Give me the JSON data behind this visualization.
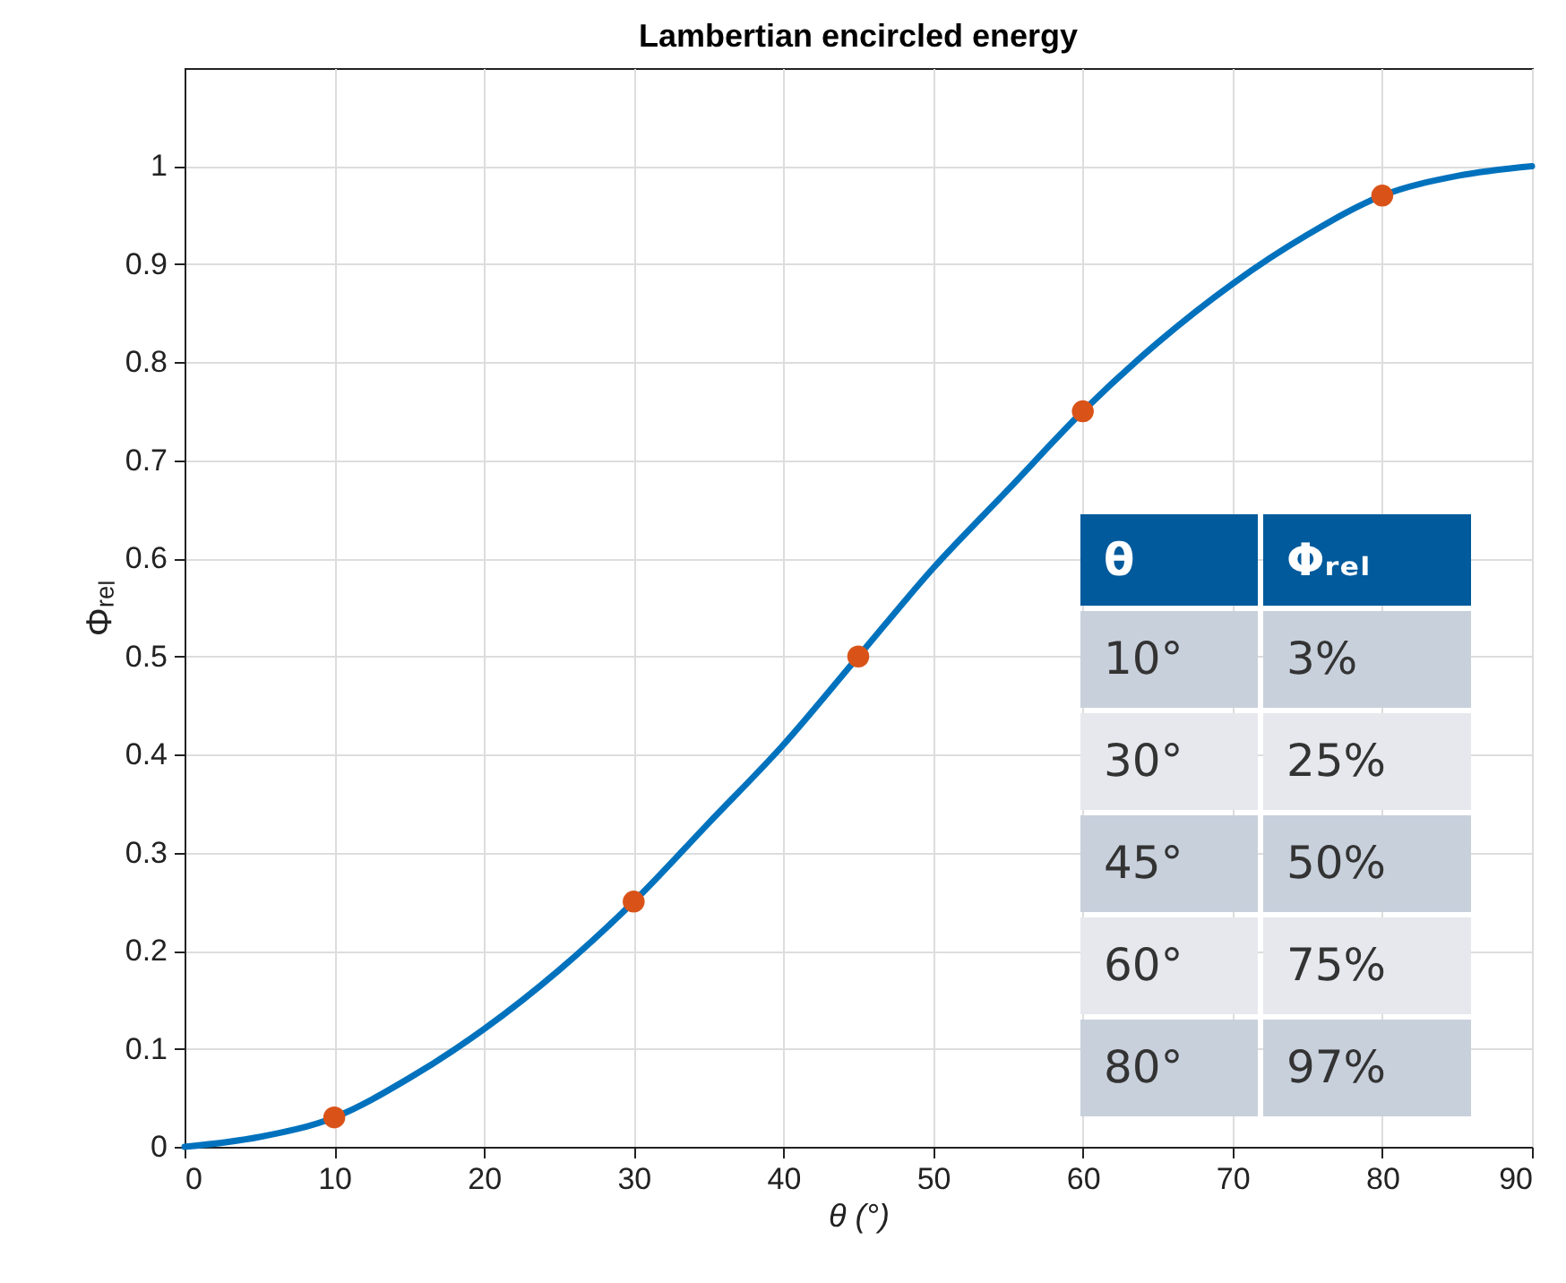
{
  "chart_data": {
    "type": "line",
    "title": "Lambertian encircled energy",
    "xlabel": "θ (°)",
    "ylabel": "Φᵣₑₗ",
    "xlim": [
      0,
      90
    ],
    "xticks": [
      0,
      10,
      20,
      30,
      40,
      50,
      60,
      70,
      80,
      90
    ],
    "ylim": [
      0,
      1.1
    ],
    "yticks": [
      0,
      0.1,
      0.2,
      0.3,
      0.4,
      0.5,
      0.6,
      0.7,
      0.8,
      0.9,
      1
    ],
    "grid": true,
    "series": [
      {
        "color": "#0072bd",
        "x": [
          0,
          5,
          10,
          15,
          20,
          25,
          30,
          35,
          40,
          45,
          50,
          55,
          60,
          65,
          70,
          75,
          80,
          85,
          90
        ],
        "values": [
          0,
          0.01,
          0.03,
          0.07,
          0.12,
          0.18,
          0.25,
          0.33,
          0.41,
          0.5,
          0.59,
          0.67,
          0.75,
          0.82,
          0.88,
          0.93,
          0.97,
          0.99,
          1
        ]
      },
      {
        "type": "scatter",
        "marker": "circle",
        "color": "#d95319",
        "x": [
          10,
          30,
          45,
          60,
          80
        ],
        "values": [
          0.03,
          0.25,
          0.5,
          0.75,
          0.97
        ]
      }
    ],
    "annotations": [
      "θ",
      "Φᵣₑₗ",
      "10°",
      "3%",
      "30°",
      "25%",
      "45°",
      "50%",
      "60°",
      "75%",
      "80°",
      "97%"
    ]
  }
}
